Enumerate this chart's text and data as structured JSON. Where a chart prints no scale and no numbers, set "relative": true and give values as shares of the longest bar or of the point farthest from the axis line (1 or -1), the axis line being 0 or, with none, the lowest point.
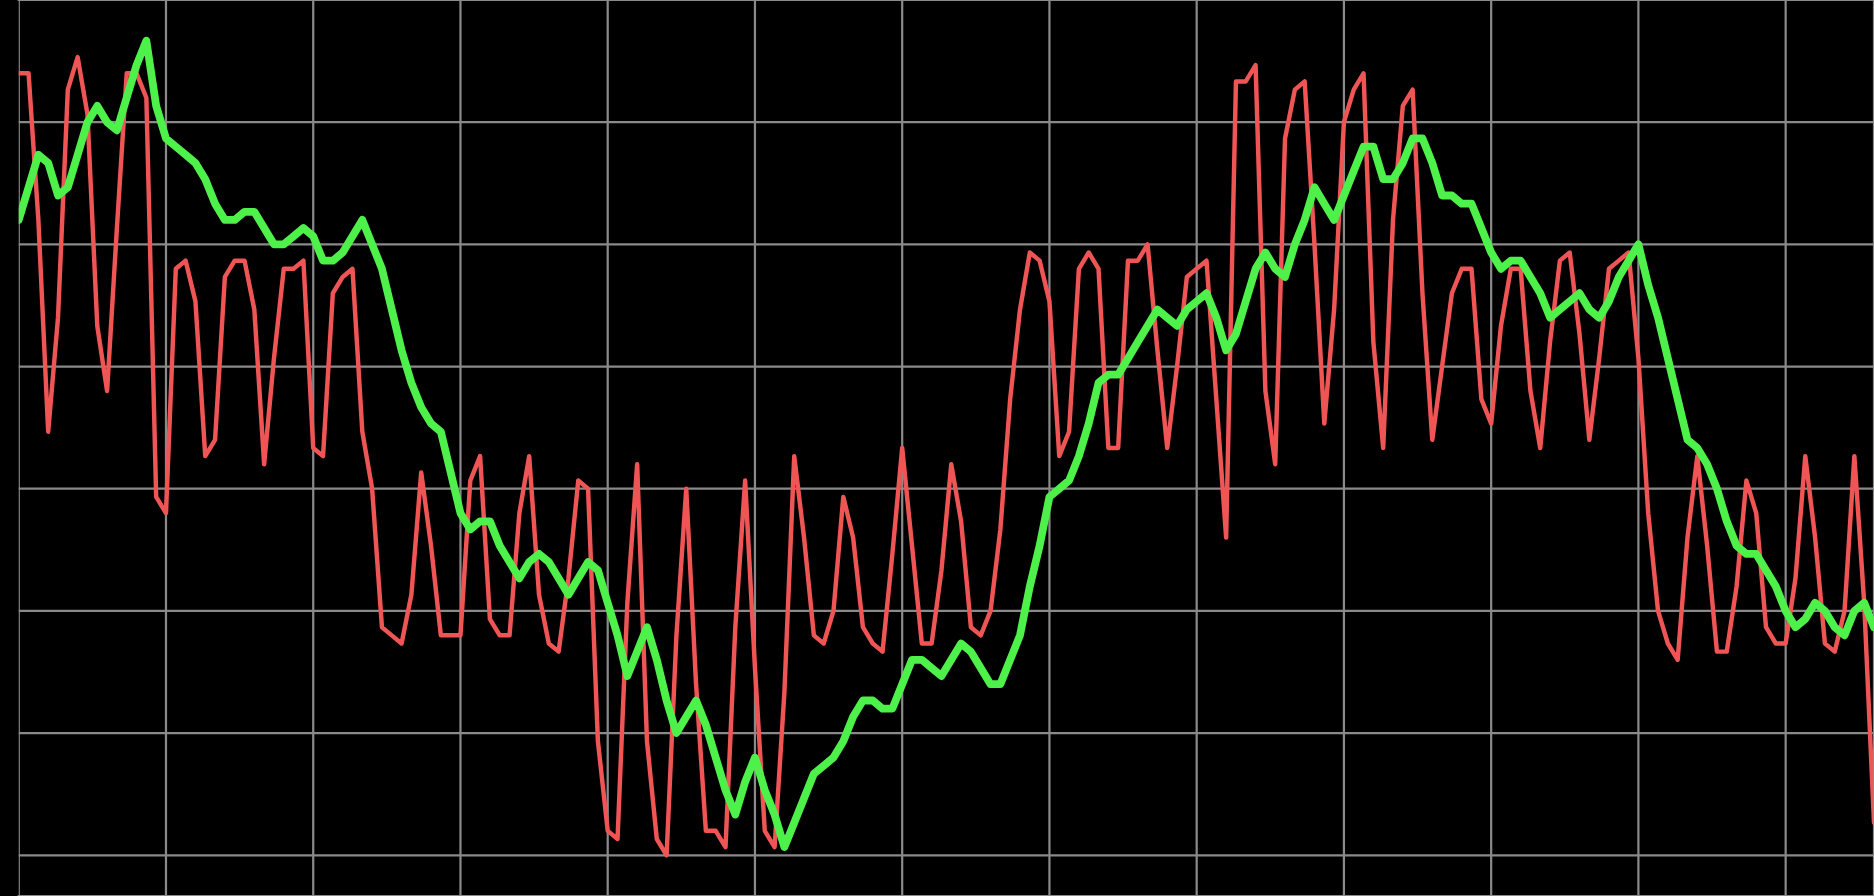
{
  "chart_data": {
    "type": "line",
    "relative": true,
    "grid": true,
    "line_style": "solid",
    "categories": [
      null,
      null,
      null,
      null,
      null,
      null,
      null,
      null,
      null,
      null,
      null,
      null,
      null,
      null,
      null,
      null,
      null,
      null,
      null,
      null,
      null,
      null,
      null,
      null,
      null,
      null,
      null,
      null,
      null,
      null,
      null,
      null,
      null,
      null,
      null,
      null,
      null,
      null,
      null,
      null,
      null,
      null,
      null,
      null,
      null,
      null,
      null,
      null,
      null,
      null,
      null,
      null,
      null,
      null,
      null,
      null,
      null,
      null,
      null,
      null,
      null,
      null,
      null,
      null,
      null,
      null,
      null,
      null,
      null,
      null,
      null,
      null,
      null,
      null,
      null,
      null,
      null,
      null,
      null,
      null,
      null,
      null,
      null,
      null,
      null,
      null,
      null,
      null,
      null,
      null,
      null,
      null,
      null,
      null,
      null,
      null,
      null,
      null,
      null,
      null,
      null,
      null,
      null,
      null,
      null,
      null,
      null,
      null,
      null,
      null,
      null,
      null,
      null,
      null,
      null,
      null,
      null,
      null,
      null,
      null,
      null,
      null,
      null,
      null,
      null,
      null,
      null,
      null,
      null,
      null,
      null,
      null,
      null,
      null,
      null,
      null,
      null,
      null,
      null,
      null,
      null,
      null,
      null,
      null,
      null,
      null,
      null,
      null,
      null,
      null,
      null,
      null,
      null,
      null,
      null,
      null,
      null,
      null,
      null,
      null,
      null,
      null,
      null,
      null,
      null,
      null,
      null,
      null,
      null,
      null,
      null,
      null,
      null,
      null,
      null,
      null,
      null,
      null,
      null,
      null,
      null,
      null,
      null,
      null,
      null,
      null,
      null,
      null,
      null,
      null
    ],
    "series": [
      {
        "color": "#f05555",
        "values": [
          0.96,
          0.96,
          0.78,
          0.52,
          0.66,
          0.94,
          0.98,
          0.91,
          0.65,
          0.57,
          0.77,
          0.96,
          0.96,
          0.93,
          0.44,
          0.42,
          0.72,
          0.73,
          0.68,
          0.49,
          0.51,
          0.71,
          0.73,
          0.73,
          0.67,
          0.48,
          0.61,
          0.72,
          0.72,
          0.73,
          0.5,
          0.49,
          0.69,
          0.71,
          0.72,
          0.52,
          0.45,
          0.28,
          0.27,
          0.26,
          0.32,
          0.47,
          0.38,
          0.27,
          0.27,
          0.27,
          0.46,
          0.49,
          0.29,
          0.27,
          0.27,
          0.42,
          0.49,
          0.32,
          0.26,
          0.25,
          0.34,
          0.46,
          0.45,
          0.14,
          0.03,
          0.02,
          0.31,
          0.48,
          0.14,
          0.02,
          0,
          0.27,
          0.45,
          0.21,
          0.03,
          0.03,
          0.01,
          0.28,
          0.46,
          0.23,
          0.03,
          0.01,
          0.2,
          0.49,
          0.39,
          0.27,
          0.26,
          0.3,
          0.44,
          0.39,
          0.28,
          0.26,
          0.25,
          0.37,
          0.5,
          0.38,
          0.26,
          0.26,
          0.35,
          0.48,
          0.41,
          0.28,
          0.27,
          0.3,
          0.4,
          0.56,
          0.67,
          0.74,
          0.73,
          0.68,
          0.49,
          0.52,
          0.72,
          0.74,
          0.72,
          0.5,
          0.5,
          0.73,
          0.73,
          0.75,
          0.62,
          0.5,
          0.6,
          0.71,
          0.72,
          0.73,
          0.56,
          0.39,
          0.95,
          0.95,
          0.97,
          0.57,
          0.48,
          0.88,
          0.94,
          0.95,
          0.75,
          0.53,
          0.67,
          0.9,
          0.94,
          0.96,
          0.63,
          0.5,
          0.78,
          0.92,
          0.94,
          0.69,
          0.51,
          0.6,
          0.69,
          0.72,
          0.72,
          0.56,
          0.53,
          0.65,
          0.72,
          0.72,
          0.57,
          0.5,
          0.63,
          0.73,
          0.74,
          0.64,
          0.51,
          0.61,
          0.72,
          0.73,
          0.74,
          0.61,
          0.42,
          0.3,
          0.26,
          0.24,
          0.39,
          0.49,
          0.38,
          0.25,
          0.25,
          0.33,
          0.46,
          0.42,
          0.28,
          0.26,
          0.26,
          0.34,
          0.49,
          0.39,
          0.26,
          0.25,
          0.3,
          0.49,
          0.31,
          0.04
        ]
      },
      {
        "color": "#4ef04a",
        "values": [
          0.78,
          0.82,
          0.86,
          0.85,
          0.81,
          0.82,
          0.86,
          0.9,
          0.92,
          0.9,
          0.89,
          0.93,
          0.97,
          1.0,
          0.92,
          0.88,
          0.87,
          0.86,
          0.85,
          0.83,
          0.8,
          0.78,
          0.78,
          0.79,
          0.79,
          0.77,
          0.75,
          0.75,
          0.76,
          0.77,
          0.76,
          0.73,
          0.73,
          0.74,
          0.76,
          0.78,
          0.75,
          0.72,
          0.67,
          0.62,
          0.58,
          0.55,
          0.53,
          0.52,
          0.47,
          0.42,
          0.4,
          0.41,
          0.41,
          0.38,
          0.36,
          0.34,
          0.36,
          0.37,
          0.36,
          0.34,
          0.32,
          0.34,
          0.36,
          0.35,
          0.31,
          0.27,
          0.22,
          0.25,
          0.28,
          0.24,
          0.19,
          0.15,
          0.17,
          0.19,
          0.16,
          0.12,
          0.08,
          0.05,
          0.09,
          0.12,
          0.08,
          0.05,
          0.01,
          0.04,
          0.07,
          0.1,
          0.11,
          0.12,
          0.14,
          0.17,
          0.19,
          0.19,
          0.18,
          0.18,
          0.21,
          0.24,
          0.24,
          0.23,
          0.22,
          0.24,
          0.26,
          0.25,
          0.23,
          0.21,
          0.21,
          0.24,
          0.27,
          0.33,
          0.38,
          0.44,
          0.45,
          0.46,
          0.49,
          0.53,
          0.58,
          0.59,
          0.59,
          0.61,
          0.63,
          0.65,
          0.67,
          0.66,
          0.65,
          0.67,
          0.68,
          0.69,
          0.66,
          0.62,
          0.64,
          0.68,
          0.72,
          0.74,
          0.72,
          0.71,
          0.75,
          0.78,
          0.82,
          0.8,
          0.78,
          0.81,
          0.84,
          0.87,
          0.87,
          0.83,
          0.83,
          0.85,
          0.88,
          0.88,
          0.85,
          0.81,
          0.81,
          0.8,
          0.8,
          0.77,
          0.74,
          0.72,
          0.73,
          0.73,
          0.71,
          0.69,
          0.66,
          0.67,
          0.68,
          0.69,
          0.67,
          0.66,
          0.68,
          0.71,
          0.73,
          0.75,
          0.7,
          0.66,
          0.61,
          0.56,
          0.51,
          0.5,
          0.48,
          0.45,
          0.41,
          0.38,
          0.37,
          0.37,
          0.35,
          0.33,
          0.3,
          0.28,
          0.29,
          0.31,
          0.3,
          0.28,
          0.27,
          0.3,
          0.31,
          0.28
        ]
      }
    ]
  }
}
